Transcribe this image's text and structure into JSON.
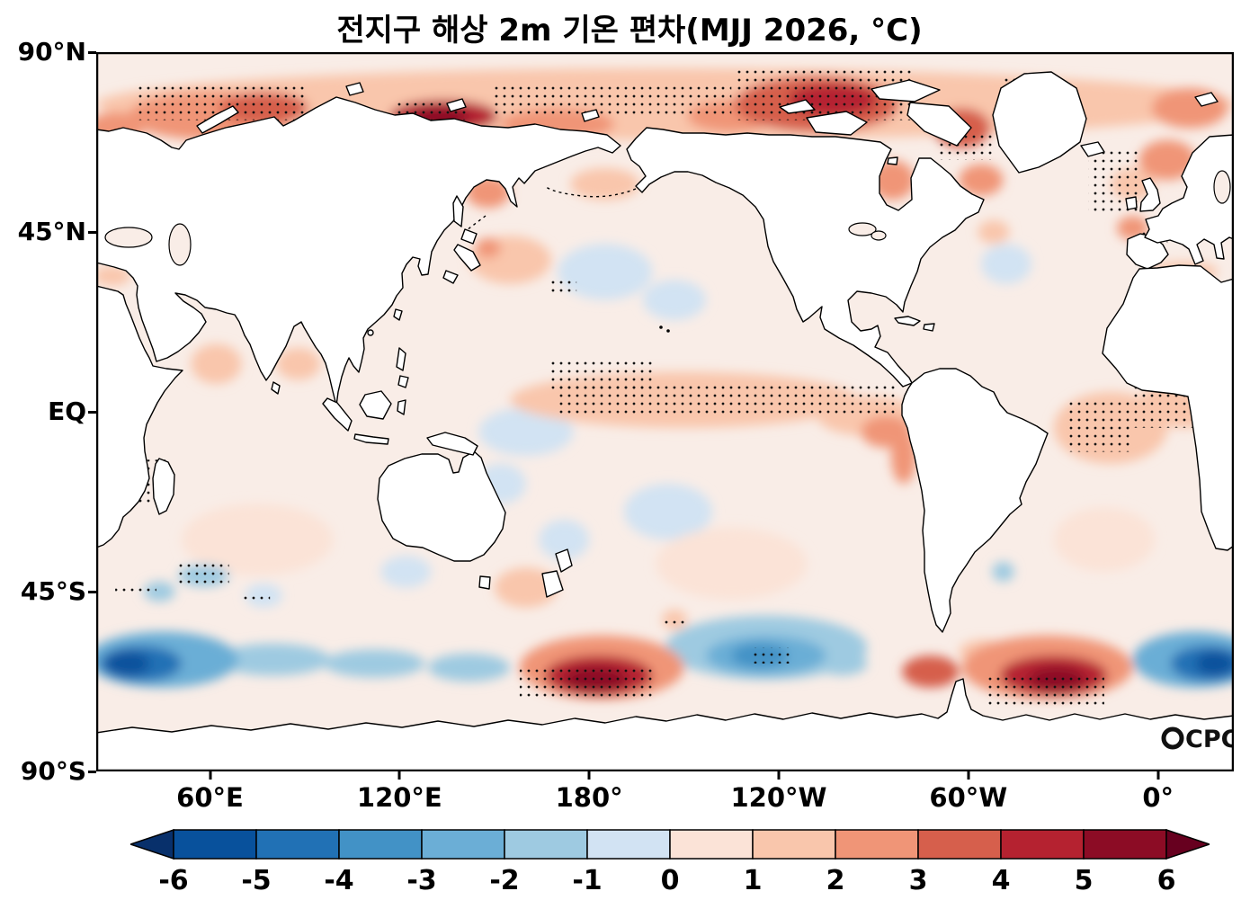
{
  "title": "전지구 해상 2m 기온 편차(MJJ 2026, °C)",
  "watermark": {
    "text": "CPC"
  },
  "axes": {
    "lat_labels": [
      "90°N",
      "45°N",
      "EQ",
      "45°S",
      "90°S"
    ],
    "lon_labels": [
      "60°E",
      "120°E",
      "180°",
      "120°W",
      "60°W",
      "0°"
    ]
  },
  "colorbar_tick_labels": [
    "-6",
    "-5",
    "-4",
    "-3",
    "-2",
    "-1",
    "0",
    "1",
    "2",
    "3",
    "4",
    "5",
    "6"
  ],
  "chart_data": {
    "type": "heatmap",
    "title": "전지구 해상 2m 기온 편차(MJJ 2026, °C)",
    "variable": "global ocean 2 m temperature anomaly",
    "season": "MJJ 2026",
    "units": "°C",
    "lon_axis": {
      "tick_degrees_east": [
        60,
        120,
        180,
        240,
        300,
        360
      ],
      "range_deg_east": [
        24,
        384
      ]
    },
    "lat_axis": {
      "tick_degrees_north": [
        90,
        45,
        0,
        -45,
        -90
      ],
      "range_deg_north": [
        -90,
        90
      ]
    },
    "ocean_base_color": "#f9ede7",
    "land_color": "#ffffff",
    "coastline_color": "#000000",
    "colorbar": {
      "levels": [
        -6,
        -5,
        -4,
        -3,
        -2,
        -1,
        0,
        1,
        2,
        3,
        4,
        5,
        6
      ],
      "colors": [
        "#08519c",
        "#2171b5",
        "#4292c6",
        "#6baed6",
        "#9ecae1",
        "#d2e3f3",
        "#fbe3d7",
        "#f9c6ac",
        "#f09577",
        "#d65f4c",
        "#b52230",
        "#8c0c25"
      ],
      "below_color": "#08306b",
      "above_color": "#67001f"
    },
    "anomaly_features": [
      {
        "name": "arctic-band-pale",
        "lon": 204,
        "lat": 77,
        "dlon": 180,
        "dlat": 9,
        "value": 1.3
      },
      {
        "name": "arctic-band-mid",
        "lon": 210,
        "lat": 75,
        "dlon": 120,
        "dlat": 6,
        "value": 1.8
      },
      {
        "name": "barents-kara",
        "lon": 77,
        "lat": 76,
        "dlon": 14,
        "dlat": 4,
        "value": 3.6
      },
      {
        "name": "barents-halo",
        "lon": 60,
        "lat": 74,
        "dlon": 26,
        "dlat": 6,
        "value": 2.2
      },
      {
        "name": "siberia-core",
        "lon": 133,
        "lat": 73.5,
        "dlon": 9,
        "dlat": 2.6,
        "value": 5.6
      },
      {
        "name": "siberia-mid",
        "lon": 134,
        "lat": 74,
        "dlon": 17,
        "dlat": 4,
        "value": 4.2
      },
      {
        "name": "chukchi",
        "lon": 170,
        "lat": 72,
        "dlon": 18,
        "dlat": 4,
        "value": 2.6
      },
      {
        "name": "canada-arctic-core",
        "lon": 257,
        "lat": 78,
        "dlon": 14,
        "dlat": 4,
        "value": 4.6
      },
      {
        "name": "canada-arctic-mid",
        "lon": 252,
        "lat": 77,
        "dlon": 26,
        "dlat": 7,
        "value": 3.2
      },
      {
        "name": "beaufort",
        "lon": 225,
        "lat": 74,
        "dlon": 14,
        "dlat": 4,
        "value": 2.6
      },
      {
        "name": "baffin-bay",
        "lon": 298,
        "lat": 71,
        "dlon": 9,
        "dlat": 5,
        "value": 3.6
      },
      {
        "name": "labrador-sea",
        "lon": 304,
        "lat": 58,
        "dlon": 7,
        "dlat": 4,
        "value": 2.6
      },
      {
        "name": "hudson-bay",
        "lon": 276,
        "lat": 58,
        "dlon": 7,
        "dlat": 5,
        "value": 2.6
      },
      {
        "name": "greenland-sea",
        "lon": 363,
        "lat": 63,
        "dlon": 9,
        "dlat": 5,
        "value": 2.6
      },
      {
        "name": "svalbard-warm",
        "lon": 370,
        "lat": 76,
        "dlon": 12,
        "dlat": 5,
        "value": 2.6
      },
      {
        "name": "barents-left-edge",
        "lon": 30,
        "lat": 71,
        "dlon": 9,
        "dlat": 4,
        "value": 2.2
      },
      {
        "name": "norwegian-sea",
        "lon": 352,
        "lat": 57,
        "dlon": 7,
        "dlat": 4,
        "value": 1.6
      },
      {
        "name": "natl-spot",
        "lon": 352,
        "lat": 46,
        "dlon": 5,
        "dlat": 3,
        "value": 2.1
      },
      {
        "name": "newfoundland-spot",
        "lon": 308,
        "lat": 45,
        "dlon": 5,
        "dlat": 3,
        "value": 1.7
      },
      {
        "name": "okhotsk",
        "lon": 148,
        "lat": 55,
        "dlon": 7,
        "dlat": 4,
        "value": 2.1
      },
      {
        "name": "bering",
        "lon": 185,
        "lat": 57,
        "dlon": 11,
        "dlat": 4,
        "value": 1.6
      },
      {
        "name": "nw-pacific",
        "lon": 155,
        "lat": 38,
        "dlon": 13,
        "dlat": 6,
        "value": 1.3
      },
      {
        "name": "kuroshio-spot",
        "lon": 148,
        "lat": 41,
        "dlon": 4,
        "dlat": 2.5,
        "value": 2.1
      },
      {
        "name": "eq-pacific-band",
        "lon": 210,
        "lat": 3,
        "dlon": 55,
        "dlat": 7,
        "value": 1.1
      },
      {
        "name": "eq-pacific-east",
        "lon": 268,
        "lat": -1,
        "dlon": 16,
        "dlat": 5,
        "value": 1.6
      },
      {
        "name": "nino-core",
        "lon": 274,
        "lat": -5,
        "dlon": 8,
        "dlat": 4,
        "value": 2.6
      },
      {
        "name": "peru-coast",
        "lon": 279.5,
        "lat": -11,
        "dlon": 4,
        "dlat": 7,
        "value": 2.1
      },
      {
        "name": "atlantic-eq",
        "lon": 345,
        "lat": -4,
        "dlon": 18,
        "dlat": 9,
        "value": 1.3
      },
      {
        "name": "atlantic-eq2",
        "lon": 368,
        "lat": 2,
        "dlon": 14,
        "dlat": 6,
        "value": 1.3
      },
      {
        "name": "bengal",
        "lon": 88,
        "lat": 12,
        "dlon": 7,
        "dlat": 4,
        "value": 1.1
      },
      {
        "name": "arabian-sea",
        "lon": 62,
        "lat": 12,
        "dlon": 8,
        "dlat": 5,
        "value": 1.1
      },
      {
        "name": "med-right",
        "lon": 368,
        "lat": 35,
        "dlon": 11,
        "dlat": 2.5,
        "value": 1.7
      },
      {
        "name": "med-left",
        "lon": 29,
        "lat": 34,
        "dlon": 6,
        "dlat": 2.5,
        "value": 1.7
      },
      {
        "name": "s-indian-warm",
        "lon": 75,
        "lat": -32,
        "dlon": 24,
        "dlat": 9,
        "value": 0.9
      },
      {
        "name": "s-pacific-warm",
        "lon": 225,
        "lat": -38,
        "dlon": 24,
        "dlat": 9,
        "value": 0.9
      },
      {
        "name": "s-atlantic-warm",
        "lon": 343,
        "lat": -32,
        "dlon": 16,
        "dlat": 8,
        "value": 0.9
      },
      {
        "name": "tasman-warm",
        "lon": 160,
        "lat": -44,
        "dlon": 10,
        "dlat": 5,
        "value": 1.2
      },
      {
        "name": "so-blob1-halo",
        "lon": 184,
        "lat": -64,
        "dlon": 26,
        "dlat": 8,
        "value": 2.6
      },
      {
        "name": "so-blob1-mid",
        "lon": 183,
        "lat": -66,
        "dlon": 17,
        "dlat": 5,
        "value": 4.2
      },
      {
        "name": "so-blob1-core",
        "lon": 182,
        "lat": -67,
        "dlon": 10,
        "dlat": 3.2,
        "value": 5.6
      },
      {
        "name": "so-blob2-halo",
        "lon": 325,
        "lat": -64,
        "dlon": 27,
        "dlat": 8,
        "value": 2.6
      },
      {
        "name": "so-blob2-mid",
        "lon": 327,
        "lat": -66,
        "dlon": 17,
        "dlat": 5,
        "value": 4.2
      },
      {
        "name": "so-blob2-core",
        "lon": 328,
        "lat": -67,
        "dlon": 9,
        "dlat": 3.2,
        "value": 5.6
      },
      {
        "name": "drake-warm",
        "lon": 288,
        "lat": -65,
        "dlon": 9,
        "dlat": 4,
        "value": 3.1
      },
      {
        "name": "scotia-warm",
        "lon": 305,
        "lat": -60,
        "dlon": 8,
        "dlat": 3,
        "value": 1.6
      },
      {
        "name": "nz-south-spot",
        "lon": 207,
        "lat": -52,
        "dlon": 4,
        "dlat": 2.5,
        "value": 1.4
      },
      {
        "name": "so-left-halo",
        "lon": 45,
        "lat": -62,
        "dlon": 24,
        "dlat": 7,
        "value": -2.6
      },
      {
        "name": "so-left-mid",
        "lon": 38,
        "lat": -63,
        "dlon": 13,
        "dlat": 4.5,
        "value": -4.2
      },
      {
        "name": "so-left-core",
        "lon": 34,
        "lat": -63,
        "dlon": 7,
        "dlat": 3,
        "value": -5.2
      },
      {
        "name": "so-left-ext",
        "lon": 80,
        "lat": -62,
        "dlon": 18,
        "dlat": 4,
        "value": -1.6
      },
      {
        "name": "so-left-ext2",
        "lon": 112,
        "lat": -63,
        "dlon": 16,
        "dlat": 3.5,
        "value": -1.3
      },
      {
        "name": "so-cpac-halo",
        "lon": 236,
        "lat": -59,
        "dlon": 32,
        "dlat": 8,
        "value": -1.6
      },
      {
        "name": "so-cpac-mid",
        "lon": 236,
        "lat": -61,
        "dlon": 19,
        "dlat": 5,
        "value": -2.6
      },
      {
        "name": "so-cpac-core",
        "lon": 234,
        "lat": -61,
        "dlon": 9,
        "dlat": 3,
        "value": -3.6
      },
      {
        "name": "so-right-halo",
        "lon": 372,
        "lat": -62,
        "dlon": 20,
        "dlat": 7,
        "value": -2.6
      },
      {
        "name": "so-right-mid",
        "lon": 376,
        "lat": -63,
        "dlon": 12,
        "dlat": 4.5,
        "value": -4.2
      },
      {
        "name": "so-right-core",
        "lon": 378,
        "lat": -63,
        "dlon": 6,
        "dlat": 3,
        "value": -5.2
      },
      {
        "name": "s-indian-blue1",
        "lon": 58,
        "lat": -41,
        "dlon": 8,
        "dlat": 2.8,
        "value": -1.6
      },
      {
        "name": "s-indian-blue2",
        "lon": 44,
        "lat": -45,
        "dlon": 5,
        "dlat": 2.5,
        "value": -1.2
      },
      {
        "name": "s-indian-blue3",
        "lon": 77,
        "lat": -46,
        "dlon": 6,
        "dlat": 3,
        "value": -0.8
      },
      {
        "name": "s-atl-blue-spot",
        "lon": 311,
        "lat": -40,
        "dlon": 3.5,
        "dlat": 2.5,
        "value": -1.6
      },
      {
        "name": "bight-blue",
        "lon": 122,
        "lat": -40,
        "dlon": 8,
        "dlat": 4,
        "value": -0.8
      },
      {
        "name": "coral-blue",
        "lon": 152,
        "lat": -18,
        "dlon": 8,
        "dlat": 5,
        "value": -0.6
      },
      {
        "name": "s-pac-blue",
        "lon": 205,
        "lat": -25,
        "dlon": 14,
        "dlat": 7,
        "value": -0.6
      },
      {
        "name": "s-pac-blue2",
        "lon": 172,
        "lat": -32,
        "dlon": 8,
        "dlat": 5,
        "value": -0.6
      },
      {
        "name": "n-pac-blue",
        "lon": 185,
        "lat": 35,
        "dlon": 15,
        "dlat": 7,
        "value": -0.6
      },
      {
        "name": "n-pac-blue2",
        "lon": 207,
        "lat": 28,
        "dlon": 10,
        "dlat": 5,
        "value": -0.5
      },
      {
        "name": "nw-atl-blue",
        "lon": 312,
        "lat": 37,
        "dlon": 8,
        "dlat": 5,
        "value": -0.7
      },
      {
        "name": "so-ring-blue1",
        "lon": 142,
        "lat": -64,
        "dlon": 13,
        "dlat": 3.5,
        "value": -1.4
      },
      {
        "name": "so-ring-blue2",
        "lon": 260,
        "lat": -63,
        "dlon": 8,
        "dlat": 3,
        "value": -1.3
      },
      {
        "name": "w-pac-eq-cool",
        "lon": 160,
        "lat": -5,
        "dlon": 15,
        "dlat": 6,
        "value": -0.5
      }
    ],
    "stipple_regions": [
      {
        "lon": [
          36,
          90
        ],
        "lat": [
          73,
          82
        ]
      },
      {
        "lon": [
          118,
          142
        ],
        "lat": [
          73,
          78
        ]
      },
      {
        "lon": [
          150,
          225
        ],
        "lat": [
          74,
          82
        ]
      },
      {
        "lon": [
          226,
          282
        ],
        "lat": [
          73,
          86
        ]
      },
      {
        "lon": [
          311,
          325
        ],
        "lat": [
          80,
          84
        ]
      },
      {
        "lon": [
          290,
          308
        ],
        "lat": [
          63,
          70
        ]
      },
      {
        "lon": [
          338,
          355
        ],
        "lat": [
          50,
          66
        ]
      },
      {
        "lon": [
          355,
          363
        ],
        "lat": [
          42,
          46
        ]
      },
      {
        "lon": [
          168,
          176
        ],
        "lat": [
          30,
          33
        ]
      },
      {
        "lon": [
          167,
          200
        ],
        "lat": [
          5,
          13
        ]
      },
      {
        "lon": [
          170,
          278
        ],
        "lat": [
          -1,
          7
        ]
      },
      {
        "lon": [
          331,
          352
        ],
        "lat": [
          -10,
          3
        ]
      },
      {
        "lon": [
          352,
          376
        ],
        "lat": [
          -4,
          8
        ]
      },
      {
        "lon": [
          36,
          46
        ],
        "lat": [
          -23,
          -12
        ]
      },
      {
        "lon": [
          50,
          66
        ],
        "lat": [
          -43,
          -38
        ]
      },
      {
        "lon": [
          30,
          43
        ],
        "lat": [
          -46,
          -43
        ]
      },
      {
        "lon": [
          70,
          79
        ],
        "lat": [
          -47,
          -45
        ]
      },
      {
        "lon": [
          204,
          211
        ],
        "lat": [
          -54,
          -51
        ]
      },
      {
        "lon": [
          232,
          244
        ],
        "lat": [
          -63,
          -59
        ]
      },
      {
        "lon": [
          158,
          200
        ],
        "lat": [
          -72,
          -64
        ]
      },
      {
        "lon": [
          305,
          343
        ],
        "lat": [
          -74,
          -66
        ]
      }
    ]
  }
}
